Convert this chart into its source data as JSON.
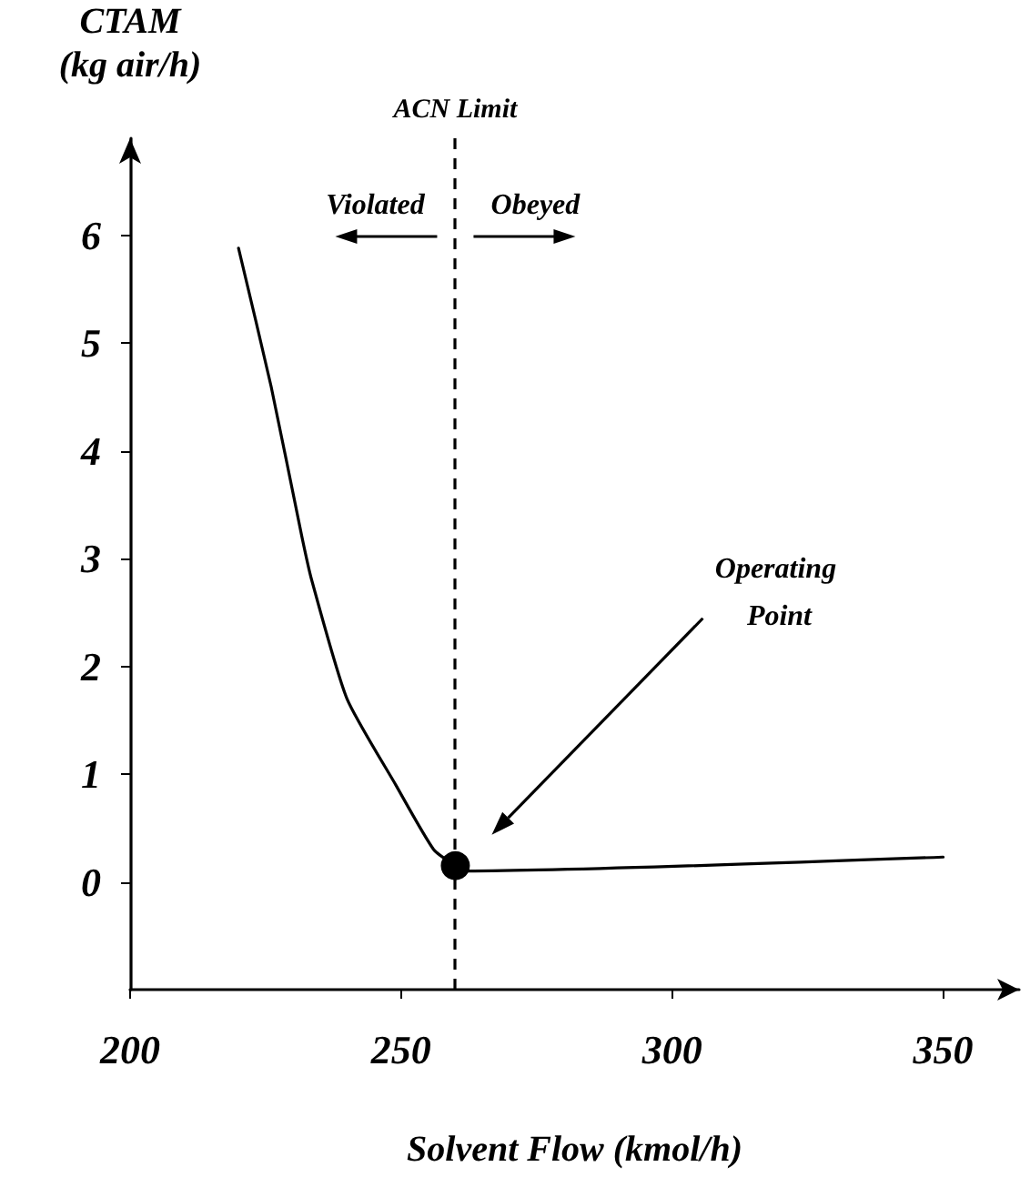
{
  "chart_data": {
    "type": "line",
    "xlabel": "Solvent Flow (kmol/h)",
    "ylabel": "CTAM (kg air/h)",
    "xlim": [
      200,
      364
    ],
    "xticks": [
      200,
      250,
      300,
      350
    ],
    "ylim": [
      -1,
      6.9
    ],
    "yticks": [
      0,
      1,
      2,
      3,
      4,
      5,
      6
    ],
    "grid": false,
    "line_style": "solid",
    "series": [
      {
        "color": "#000000",
        "marker": "none",
        "x": [
          220,
          226,
          231.7,
          233.5,
          240,
          249,
          256,
          260,
          262,
          350
        ],
        "values": [
          5.88,
          4.6,
          3.2,
          2.8,
          1.7,
          0.9,
          0.3,
          0.15,
          0.1,
          0.23
        ]
      },
      {
        "type": "scatter",
        "color": "#000000",
        "marker": "circle",
        "x": [
          260
        ],
        "values": [
          0.15
        ]
      }
    ],
    "ref_lines": [
      {
        "axis": "x",
        "value": 260,
        "label": "ACN Limit",
        "color": "#000000",
        "line_style": "dashed"
      }
    ],
    "annotations": [
      "Violated",
      "Obeyed",
      "Operating Point"
    ]
  }
}
